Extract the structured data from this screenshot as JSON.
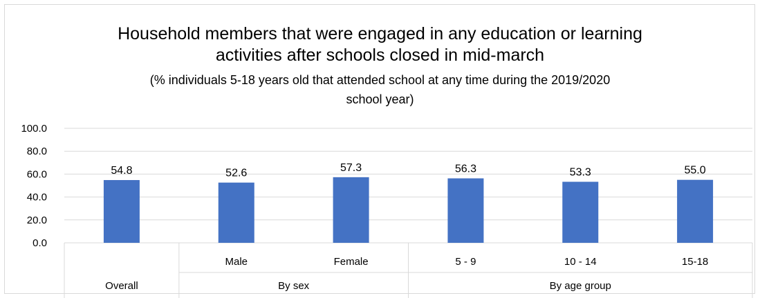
{
  "chart_data": {
    "type": "bar",
    "title": "Household members that were engaged in any education or learning activities after schools closed in mid-march",
    "title_lines": [
      "Household members that were engaged in any education or learning",
      "activities after schools closed in mid-march"
    ],
    "subtitle_lines": [
      "(% individuals 5-18 years old that attended school at any time during the 2019/2020",
      "school year)"
    ],
    "categories": [
      "",
      "Male",
      "Female",
      "5 - 9",
      "10 - 14",
      "15-18"
    ],
    "groups": [
      {
        "label": "Overall",
        "members": [
          0
        ]
      },
      {
        "label": "By sex",
        "members": [
          1,
          2
        ]
      },
      {
        "label": "By age group",
        "members": [
          3,
          4,
          5
        ]
      }
    ],
    "values": [
      54.8,
      52.6,
      57.3,
      56.3,
      53.3,
      55.0
    ],
    "data_labels": [
      "54.8",
      "52.6",
      "57.3",
      "56.3",
      "53.3",
      "55.0"
    ],
    "yticks": [
      "0.0",
      "20.0",
      "40.0",
      "60.0",
      "80.0",
      "100.0"
    ],
    "ylim": [
      0,
      100
    ],
    "grid": true,
    "bar_color": "#4472c4",
    "grid_color": "#d9d9d9"
  }
}
